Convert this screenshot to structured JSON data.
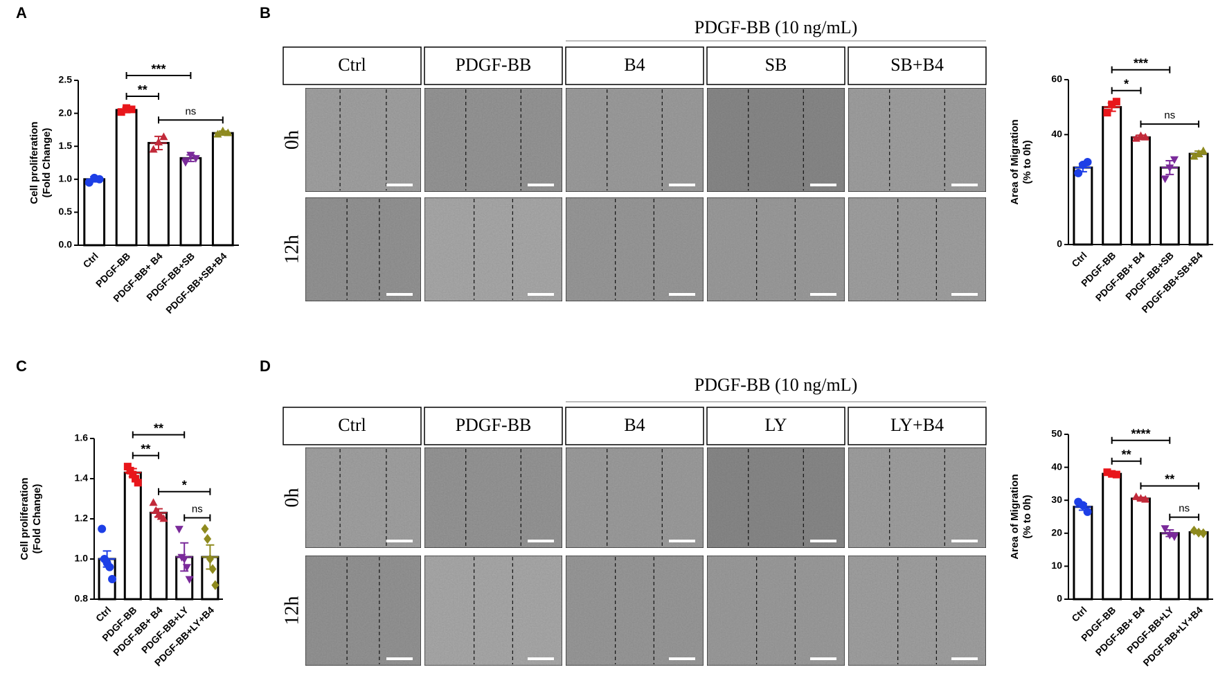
{
  "panels": {
    "labels": [
      "A",
      "B",
      "C",
      "D"
    ]
  },
  "image_panels": [
    {
      "header": "PDGF-BB (10 ng/mL)",
      "columns": [
        "Ctrl",
        "PDGF-BB",
        "B4",
        "SB",
        "SB+B4"
      ],
      "rows": [
        "0h",
        "12h"
      ]
    },
    {
      "header": "PDGF-BB (10 ng/mL)",
      "columns": [
        "Ctrl",
        "PDGF-BB",
        "B4",
        "LY",
        "LY+B4"
      ],
      "rows": [
        "0h",
        "12h"
      ]
    }
  ],
  "chart_data": [
    {
      "type": "bar",
      "ylabel": [
        "Cell proliferation",
        "(Fold Change)"
      ],
      "categories": [
        "Ctrl",
        "PDGF-BB",
        "PDGF-BB+ B4",
        "PDGF-BB+SB",
        "PDGF-BB+SB+B4"
      ],
      "values": [
        1.0,
        2.05,
        1.55,
        1.32,
        1.7
      ],
      "errors": [
        0.04,
        0.04,
        0.1,
        0.05,
        0.03
      ],
      "points": [
        [
          0.95,
          1.02,
          1.0
        ],
        [
          2.02,
          2.08,
          2.06
        ],
        [
          1.45,
          1.56,
          1.64
        ],
        [
          1.26,
          1.37,
          1.32
        ],
        [
          1.68,
          1.73,
          1.7
        ]
      ],
      "colors": [
        "#1d3fe6",
        "#e8161b",
        "#c22a3a",
        "#7a2a9a",
        "#8e8a1e"
      ],
      "markers": [
        "circle",
        "square",
        "triangle",
        "triangle-down",
        "triangle"
      ],
      "ylim": [
        0,
        2.5
      ],
      "yticks": [
        {
          "value": 0,
          "label": "0.0"
        },
        0.5,
        {
          "value": 1,
          "label": "1.0"
        },
        1.5,
        {
          "value": 2,
          "label": "2.0"
        },
        2.5
      ],
      "annotations": [
        {
          "label": "***",
          "between": [
            "PDGF-BB",
            "PDGF-BB+SB"
          ]
        },
        {
          "label": "**",
          "between": [
            "PDGF-BB",
            "PDGF-BB+ B4"
          ]
        },
        {
          "label": "ns",
          "between": [
            "PDGF-BB+ B4",
            "PDGF-BB+SB+B4"
          ]
        }
      ]
    },
    {
      "type": "bar",
      "ylabel": [
        "Area of Migration",
        "(% to 0h)"
      ],
      "categories": [
        "Ctrl",
        "PDGF-BB",
        "PDGF-BB+ B4",
        "PDGF-BB+SB",
        "PDGF-BB+SB+B4"
      ],
      "values": [
        28,
        50,
        39,
        28,
        33
      ],
      "errors": [
        1.5,
        1.5,
        0.8,
        2.5,
        1
      ],
      "points": [
        [
          26,
          29,
          30
        ],
        [
          48,
          51,
          52
        ],
        [
          38.5,
          39.5,
          39
        ],
        [
          24,
          28,
          31
        ],
        [
          32,
          33,
          34
        ]
      ],
      "colors": [
        "#1d3fe6",
        "#e8161b",
        "#c22a3a",
        "#7a2a9a",
        "#8e8a1e"
      ],
      "markers": [
        "circle",
        "square",
        "triangle",
        "triangle-down",
        "triangle"
      ],
      "ylim": [
        0,
        60
      ],
      "yticks": [
        0,
        40,
        60
      ],
      "annotations": [
        {
          "label": "***",
          "between": [
            "PDGF-BB",
            "PDGF-BB+SB"
          ]
        },
        {
          "label": "*",
          "between": [
            "PDGF-BB",
            "PDGF-BB+ B4"
          ]
        },
        {
          "label": "ns",
          "between": [
            "PDGF-BB+ B4",
            "PDGF-BB+SB+B4"
          ]
        }
      ]
    },
    {
      "type": "bar",
      "ylabel": [
        "Cell proliferation",
        "(Fold Change)"
      ],
      "categories": [
        "Ctrl",
        "PDGF-BB",
        "PDGF-BB+ B4",
        "PDGF-BB+LY",
        "PDGF-BB+LY+B4"
      ],
      "values": [
        1.0,
        1.43,
        1.23,
        1.01,
        1.01
      ],
      "errors": [
        0.04,
        0.02,
        0.02,
        0.07,
        0.06
      ],
      "points": [
        [
          1.15,
          1.0,
          0.98,
          0.96,
          0.9
        ],
        [
          1.46,
          1.44,
          1.42,
          1.4,
          1.38
        ],
        [
          1.28,
          1.24,
          1.22,
          1.21,
          1.2
        ],
        [
          1.15,
          1.01,
          1.0,
          0.96,
          0.9
        ],
        [
          1.15,
          1.1,
          1.0,
          0.95,
          0.87
        ]
      ],
      "colors": [
        "#1d3fe6",
        "#e8161b",
        "#c22a3a",
        "#7a2a9a",
        "#8e8a1e"
      ],
      "markers": [
        "circle",
        "square",
        "triangle",
        "triangle-down",
        "diamond"
      ],
      "ylim": [
        0.8,
        1.6
      ],
      "yticks": [
        0.8,
        {
          "value": 1,
          "label": "1.0"
        },
        1.2,
        1.4,
        1.6
      ],
      "annotations": [
        {
          "label": "**",
          "between": [
            "PDGF-BB",
            "PDGF-BB+LY"
          ]
        },
        {
          "label": "**",
          "between": [
            "PDGF-BB",
            "PDGF-BB+ B4"
          ]
        },
        {
          "label": "*",
          "between": [
            "PDGF-BB+ B4",
            "PDGF-BB+LY+B4"
          ]
        },
        {
          "label": "ns",
          "between": [
            "PDGF-BB+LY",
            "PDGF-BB+LY+B4"
          ]
        }
      ]
    },
    {
      "type": "bar",
      "ylabel": [
        "Area of Migration",
        "(% to 0h)"
      ],
      "categories": [
        "Ctrl",
        "PDGF-BB",
        "PDGF-BB+ B4",
        "PDGF-BB+LY",
        "PDGF-BB+LY+B4"
      ],
      "values": [
        28,
        38,
        30.5,
        20,
        20.3
      ],
      "errors": [
        1,
        0.5,
        0.4,
        1,
        0.4
      ],
      "points": [
        [
          29.5,
          28.5,
          26.5
        ],
        [
          38.5,
          38,
          37.8
        ],
        [
          31,
          30.5,
          30.2
        ],
        [
          21.5,
          19.5,
          19
        ],
        [
          20.8,
          20.2,
          20
        ]
      ],
      "colors": [
        "#1d3fe6",
        "#e8161b",
        "#c22a3a",
        "#7a2a9a",
        "#8e8a1e"
      ],
      "markers": [
        "circle",
        "square",
        "triangle",
        "triangle-down",
        "diamond"
      ],
      "ylim": [
        0,
        50
      ],
      "yticks": [
        0,
        10,
        20,
        30,
        40,
        50
      ],
      "annotations": [
        {
          "label": "****",
          "between": [
            "PDGF-BB",
            "PDGF-BB+LY"
          ]
        },
        {
          "label": "**",
          "between": [
            "PDGF-BB",
            "PDGF-BB+ B4"
          ]
        },
        {
          "label": "**",
          "between": [
            "PDGF-BB+ B4",
            "PDGF-BB+LY+B4"
          ]
        },
        {
          "label": "ns",
          "between": [
            "PDGF-BB+LY",
            "PDGF-BB+LY+B4"
          ]
        }
      ]
    }
  ]
}
